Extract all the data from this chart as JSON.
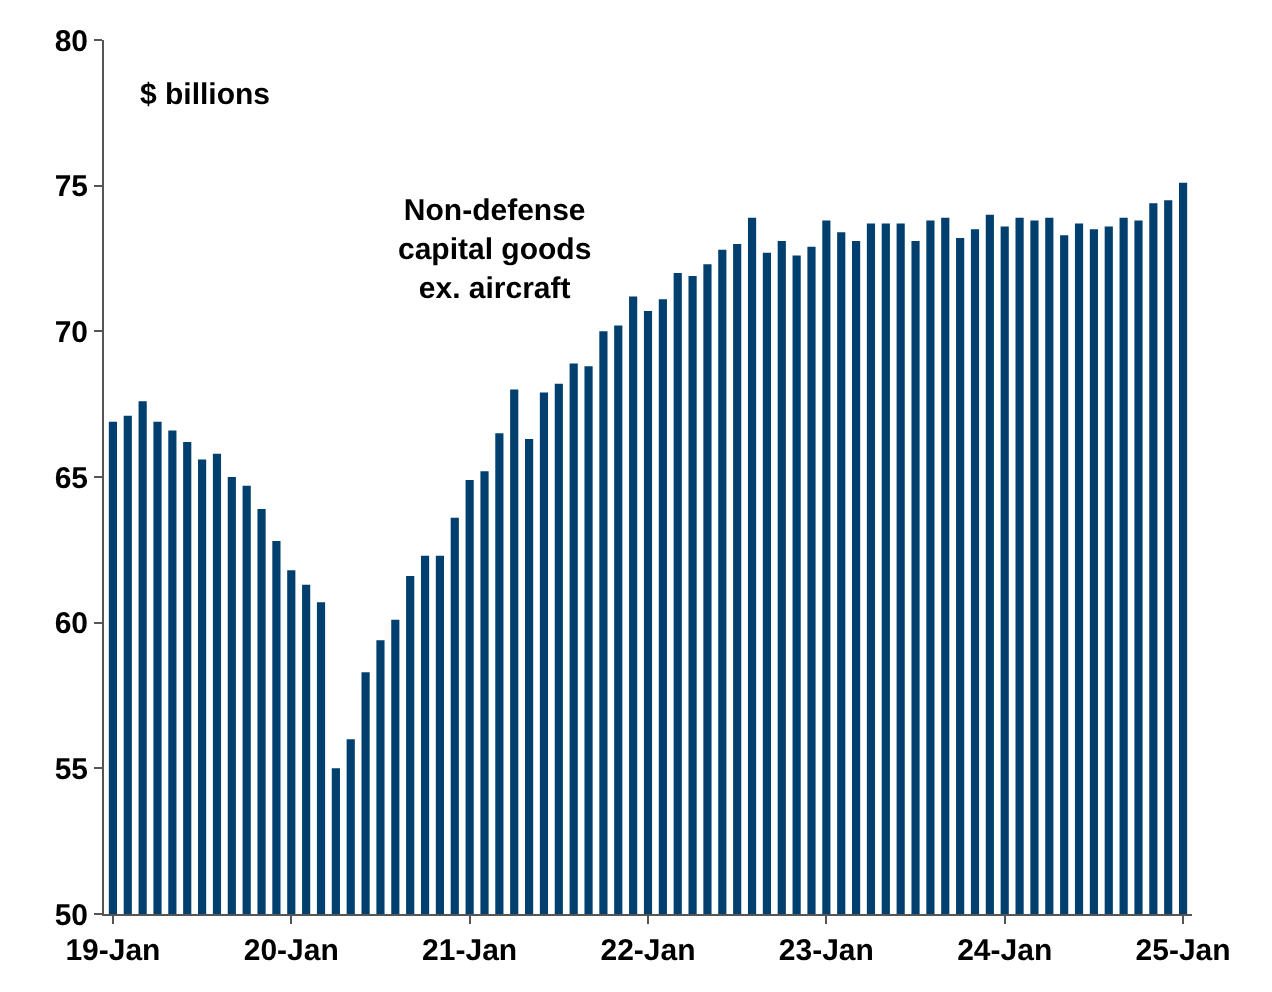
{
  "chart_data": {
    "type": "bar",
    "ylabel": "$ billions",
    "annotations": [
      "Non-defense\ncapital goods\nex. aircraft"
    ],
    "categories": [
      "19-Jan",
      null,
      null,
      null,
      null,
      null,
      null,
      null,
      null,
      null,
      null,
      null,
      "20-Jan",
      null,
      null,
      null,
      null,
      null,
      null,
      null,
      null,
      null,
      null,
      null,
      "21-Jan",
      null,
      null,
      null,
      null,
      null,
      null,
      null,
      null,
      null,
      null,
      null,
      "22-Jan",
      null,
      null,
      null,
      null,
      null,
      null,
      null,
      null,
      null,
      null,
      null,
      "23-Jan",
      null,
      null,
      null,
      null,
      null,
      null,
      null,
      null,
      null,
      null,
      null,
      "24-Jan",
      null,
      null,
      null,
      null,
      null,
      null,
      null,
      null,
      null,
      null,
      null,
      "25-Jan"
    ],
    "values": [
      66.9,
      67.1,
      67.6,
      66.9,
      66.6,
      66.2,
      65.6,
      65.8,
      65.0,
      64.7,
      63.9,
      62.8,
      61.8,
      61.3,
      60.7,
      55.0,
      56.0,
      58.3,
      59.4,
      60.1,
      61.6,
      62.3,
      62.3,
      63.6,
      64.9,
      65.2,
      66.5,
      68.0,
      66.3,
      67.9,
      68.2,
      68.9,
      68.8,
      70.0,
      70.2,
      71.2,
      70.7,
      71.1,
      72.0,
      71.9,
      72.3,
      72.8,
      73.0,
      73.9,
      72.7,
      73.1,
      72.6,
      72.9,
      73.8,
      73.4,
      73.1,
      73.7,
      73.7,
      73.7,
      73.1,
      73.8,
      73.9,
      73.2,
      73.5,
      74.0,
      73.6,
      73.9,
      73.8,
      73.9,
      73.3,
      73.7,
      73.5,
      73.6,
      73.9,
      73.8,
      74.4,
      74.5,
      75.1
    ],
    "color": "#003f6e",
    "ylim": [
      50,
      80
    ],
    "yticks": [
      50,
      55,
      60,
      65,
      70,
      75,
      80
    ]
  }
}
